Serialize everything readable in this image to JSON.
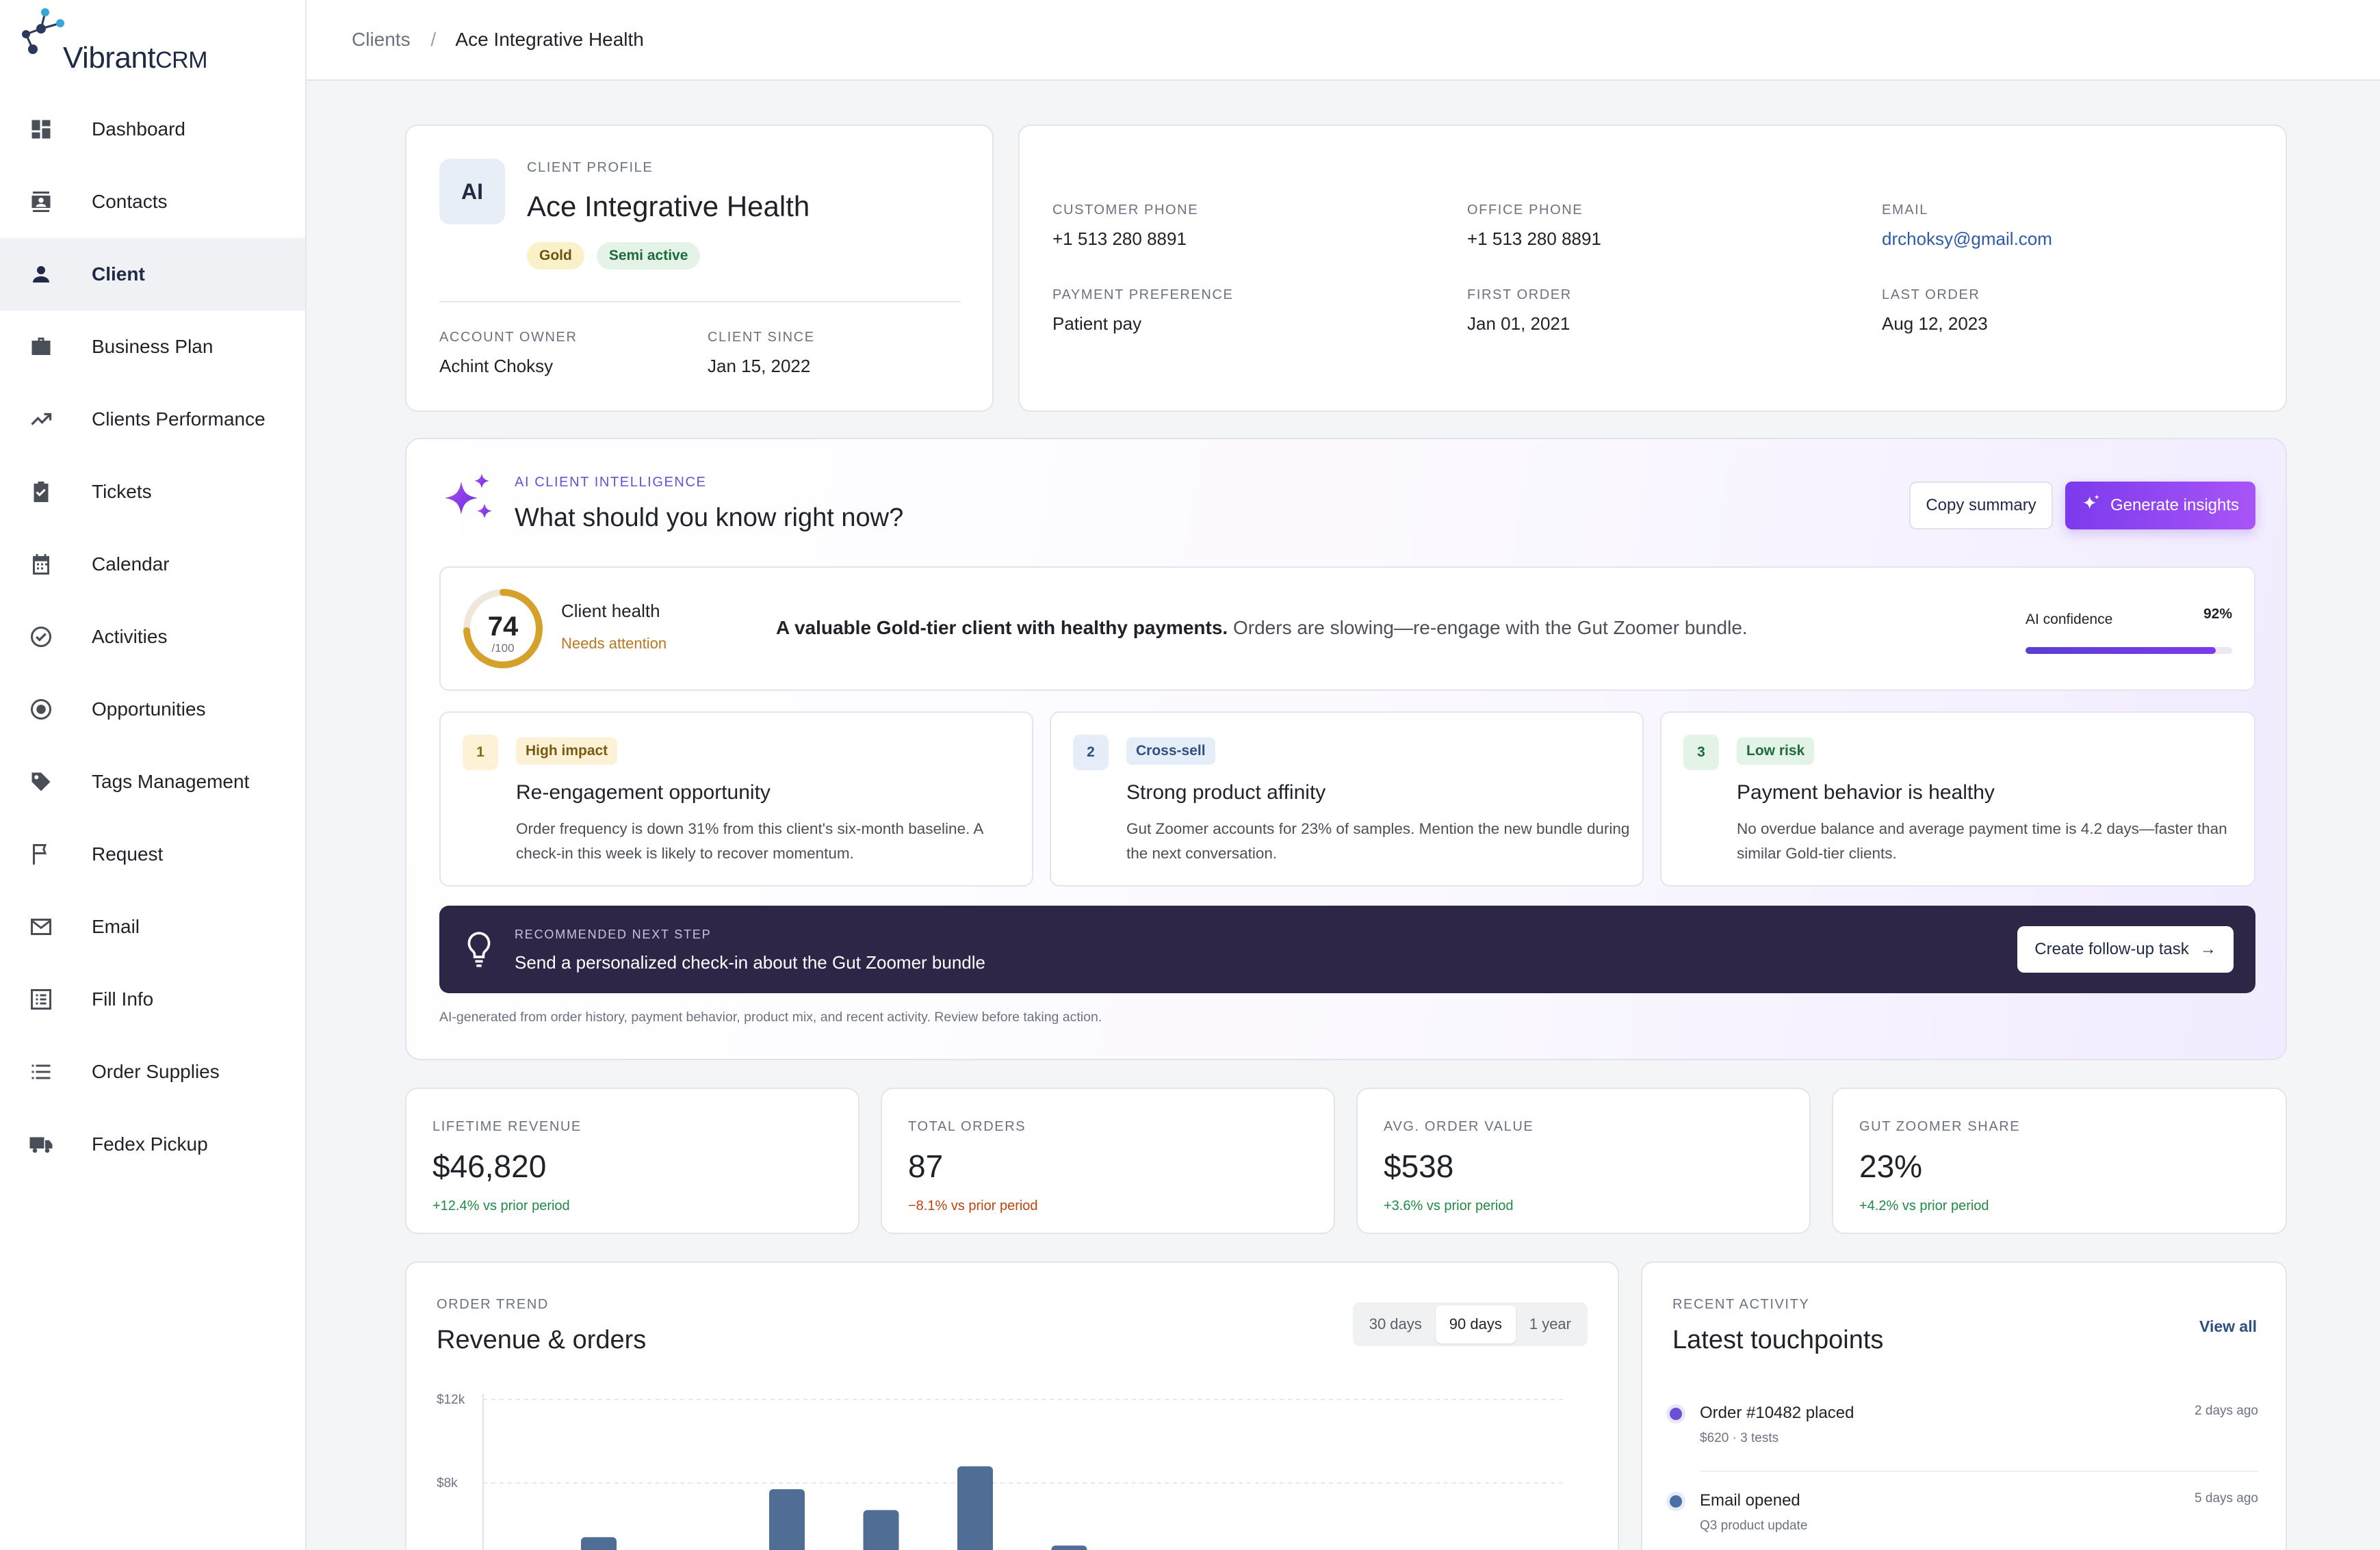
{
  "app": {
    "logo_main": "Vibrant",
    "logo_suffix": "CRM"
  },
  "sidebar": {
    "items": [
      {
        "label": "Dashboard",
        "icon": "dashboard-icon"
      },
      {
        "label": "Contacts",
        "icon": "contacts-icon"
      },
      {
        "label": "Client",
        "icon": "person-icon",
        "active": true
      },
      {
        "label": "Business Plan",
        "icon": "briefcase-icon"
      },
      {
        "label": "Clients Performance",
        "icon": "trending-up-icon"
      },
      {
        "label": "Tickets",
        "icon": "clipboard-check-icon"
      },
      {
        "label": "Calendar",
        "icon": "calendar-icon"
      },
      {
        "label": "Activities",
        "icon": "check-circle-icon"
      },
      {
        "label": "Opportunities",
        "icon": "target-icon"
      },
      {
        "label": "Tags Management",
        "icon": "tag-icon"
      },
      {
        "label": "Request",
        "icon": "flag-icon"
      },
      {
        "label": "Email",
        "icon": "mail-icon"
      },
      {
        "label": "Fill Info",
        "icon": "form-icon"
      },
      {
        "label": "Order Supplies",
        "icon": "list-icon"
      },
      {
        "label": "Fedex Pickup",
        "icon": "truck-icon"
      }
    ]
  },
  "breadcrumb": {
    "parent": "Clients",
    "separator": "/",
    "current": "Ace Integrative Health"
  },
  "profile": {
    "initials": "AI",
    "eyebrow": "CLIENT PROFILE",
    "name": "Ace Integrative Health",
    "badges": {
      "tier": "Gold",
      "status": "Semi active"
    },
    "owner_label": "ACCOUNT OWNER",
    "owner": "Achint Choksy",
    "since_label": "CLIENT SINCE",
    "since": "Jan 15, 2022"
  },
  "contact": {
    "customer_phone_label": "CUSTOMER PHONE",
    "customer_phone": "+1 513 280 8891",
    "office_phone_label": "OFFICE PHONE",
    "office_phone": "+1 513 280 8891",
    "email_label": "EMAIL",
    "email": "drchoksy@gmail.com",
    "payment_label": "PAYMENT PREFERENCE",
    "payment": "Patient pay",
    "first_order_label": "FIRST ORDER",
    "first_order": "Jan 01, 2021",
    "last_order_label": "LAST ORDER",
    "last_order": "Aug 12, 2023"
  },
  "ai": {
    "eyebrow": "AI CLIENT INTELLIGENCE",
    "title": "What should you know right now?",
    "copy_label": "Copy summary",
    "generate_label": "Generate insights",
    "health_score": "74",
    "health_score_value": 74,
    "health_max": "/100",
    "health_label": "Client health",
    "health_status": "Needs attention",
    "summary_bold": "A valuable Gold-tier client with healthy payments.",
    "summary_rest": " Orders are slowing—re-engage with the Gut Zoomer bundle.",
    "confidence_label": "AI confidence",
    "confidence_text": "92%",
    "confidence_value": 0.92,
    "insights": [
      {
        "num": "1",
        "tag": "High impact",
        "title": "Re-engagement opportunity",
        "desc": "Order frequency is down 31% from this client's six-month baseline. A check-in this week is likely to recover momentum."
      },
      {
        "num": "2",
        "tag": "Cross-sell",
        "title": "Strong product affinity",
        "desc": "Gut Zoomer accounts for 23% of samples. Mention the new bundle during the next conversation."
      },
      {
        "num": "3",
        "tag": "Low risk",
        "title": "Payment behavior is healthy",
        "desc": "No overdue balance and average payment time is 4.2 days—faster than similar Gold-tier clients."
      }
    ],
    "next_eyebrow": "RECOMMENDED NEXT STEP",
    "next_title": "Send a personalized check-in about the Gut Zoomer bundle",
    "next_button": "Create follow-up task",
    "footnote": "AI-generated from order history, payment behavior, product mix, and recent activity. Review before taking action."
  },
  "stats": [
    {
      "label": "LIFETIME REVENUE",
      "value": "$46,820",
      "delta": "+12.4% vs prior period",
      "trend": "pos"
    },
    {
      "label": "TOTAL ORDERS",
      "value": "87",
      "delta": "−8.1% vs prior period",
      "trend": "neg"
    },
    {
      "label": "AVG. ORDER VALUE",
      "value": "$538",
      "delta": "+3.6% vs prior period",
      "trend": "pos"
    },
    {
      "label": "GUT ZOOMER SHARE",
      "value": "23%",
      "delta": "+4.2% vs prior period",
      "trend": "pos"
    }
  ],
  "trend": {
    "eyebrow": "ORDER TREND",
    "title": "Revenue & orders",
    "ranges": [
      "30 days",
      "90 days",
      "1 year"
    ],
    "active_range": "90 days"
  },
  "chart_data": {
    "type": "bar",
    "y_ticks": [
      "$12k",
      "$8k"
    ],
    "ylim": [
      0,
      12000
    ],
    "values": [
      5400,
      4300,
      7700,
      6700,
      8800,
      5000,
      3400
    ]
  },
  "activity": {
    "eyebrow": "RECENT ACTIVITY",
    "title": "Latest touchpoints",
    "view_all": "View all",
    "items": [
      {
        "title": "Order #10482 placed",
        "sub": "$620 · 3 tests",
        "time": "2 days ago",
        "color": "#6d4fd6"
      },
      {
        "title": "Email opened",
        "sub": "Q3 product update",
        "time": "5 days ago",
        "color": "#4a6fa5"
      }
    ]
  },
  "colors": {
    "accent": "#7c3aed",
    "navy": "#1f2a44",
    "bar": "#4f6d95"
  }
}
